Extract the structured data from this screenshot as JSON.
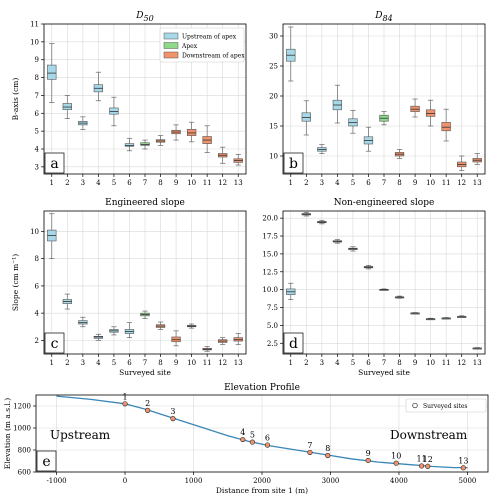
{
  "colors": {
    "upstream": "#a7d8e8",
    "apex": "#8fd98a",
    "downstream": "#f0926c",
    "profile_line": "#3a86b8",
    "grid": "#d9d9d9"
  },
  "chart_data": [
    {
      "id": "a",
      "type": "box",
      "title": "D",
      "title_sub": "50",
      "letter": "a",
      "ylabel": "B-axis (cm)",
      "xlabel": "",
      "ylim": [
        2.6,
        11
      ],
      "yticks": [
        3,
        4,
        5,
        6,
        7,
        8,
        9,
        10,
        11
      ],
      "grid": true,
      "legend": {
        "placement": "top-right",
        "entries": [
          {
            "label": "Upstream of apex",
            "group": "upstream"
          },
          {
            "label": "Apex",
            "group": "apex"
          },
          {
            "label": "Downstream of apex",
            "group": "downstream"
          }
        ]
      },
      "categories": [
        "1",
        "2",
        "3",
        "4",
        "5",
        "6",
        "7",
        "8",
        "9",
        "10",
        "11",
        "12",
        "13"
      ],
      "boxes": [
        {
          "site": "1",
          "group": "upstream",
          "min": 6.6,
          "q1": 7.9,
          "median": 8.25,
          "q3": 8.7,
          "max": 9.9
        },
        {
          "site": "2",
          "group": "upstream",
          "min": 5.7,
          "q1": 6.2,
          "median": 6.35,
          "q3": 6.55,
          "max": 7.0
        },
        {
          "site": "3",
          "group": "upstream",
          "min": 5.1,
          "q1": 5.35,
          "median": 5.45,
          "q3": 5.55,
          "max": 5.8
        },
        {
          "site": "4",
          "group": "upstream",
          "min": 6.7,
          "q1": 7.2,
          "median": 7.4,
          "q3": 7.6,
          "max": 8.3
        },
        {
          "site": "5",
          "group": "upstream",
          "min": 5.3,
          "q1": 5.95,
          "median": 6.1,
          "q3": 6.3,
          "max": 6.9
        },
        {
          "site": "6",
          "group": "upstream",
          "min": 3.9,
          "q1": 4.15,
          "median": 4.2,
          "q3": 4.3,
          "max": 4.6
        },
        {
          "site": "7",
          "group": "apex",
          "min": 4.0,
          "q1": 4.2,
          "median": 4.25,
          "q3": 4.35,
          "max": 4.5
        },
        {
          "site": "8",
          "group": "downstream",
          "min": 4.2,
          "q1": 4.38,
          "median": 4.45,
          "q3": 4.52,
          "max": 4.75
        },
        {
          "site": "9",
          "group": "downstream",
          "min": 4.5,
          "q1": 4.85,
          "median": 4.95,
          "q3": 5.05,
          "max": 5.35
        },
        {
          "site": "10",
          "group": "downstream",
          "min": 4.4,
          "q1": 4.75,
          "median": 4.9,
          "q3": 5.1,
          "max": 5.5
        },
        {
          "site": "11",
          "group": "downstream",
          "min": 3.8,
          "q1": 4.3,
          "median": 4.5,
          "q3": 4.7,
          "max": 5.3
        },
        {
          "site": "12",
          "group": "downstream",
          "min": 3.2,
          "q1": 3.55,
          "median": 3.65,
          "q3": 3.75,
          "max": 4.1
        },
        {
          "site": "13",
          "group": "downstream",
          "min": 3.1,
          "q1": 3.25,
          "median": 3.35,
          "q3": 3.45,
          "max": 3.7
        }
      ]
    },
    {
      "id": "b",
      "type": "box",
      "title": "D",
      "title_sub": "84",
      "letter": "b",
      "ylabel": "",
      "xlabel": "",
      "ylim": [
        7,
        32
      ],
      "yticks": [
        10,
        15,
        20,
        25,
        30
      ],
      "grid": true,
      "categories": [
        "1",
        "2",
        "3",
        "4",
        "5",
        "6",
        "7",
        "8",
        "9",
        "10",
        "11",
        "12",
        "13"
      ],
      "boxes": [
        {
          "site": "1",
          "group": "upstream",
          "min": 22.5,
          "q1": 25.8,
          "median": 26.8,
          "q3": 27.8,
          "max": 31.5
        },
        {
          "site": "2",
          "group": "upstream",
          "min": 13.5,
          "q1": 15.8,
          "median": 16.4,
          "q3": 17.2,
          "max": 19.2
        },
        {
          "site": "3",
          "group": "upstream",
          "min": 10.4,
          "q1": 10.8,
          "median": 11.1,
          "q3": 11.4,
          "max": 11.9
        },
        {
          "site": "4",
          "group": "upstream",
          "min": 15.5,
          "q1": 17.7,
          "median": 18.5,
          "q3": 19.3,
          "max": 21.8
        },
        {
          "site": "5",
          "group": "upstream",
          "min": 13.8,
          "q1": 15.0,
          "median": 15.6,
          "q3": 16.2,
          "max": 17.6
        },
        {
          "site": "6",
          "group": "upstream",
          "min": 10.8,
          "q1": 12.0,
          "median": 12.6,
          "q3": 13.2,
          "max": 14.8
        },
        {
          "site": "7",
          "group": "apex",
          "min": 15.2,
          "q1": 15.8,
          "median": 16.3,
          "q3": 16.8,
          "max": 17.4
        },
        {
          "site": "8",
          "group": "downstream",
          "min": 9.6,
          "q1": 10.0,
          "median": 10.3,
          "q3": 10.6,
          "max": 11.1
        },
        {
          "site": "9",
          "group": "downstream",
          "min": 16.5,
          "q1": 17.4,
          "median": 17.8,
          "q3": 18.3,
          "max": 19.5
        },
        {
          "site": "10",
          "group": "downstream",
          "min": 15.0,
          "q1": 16.6,
          "median": 17.1,
          "q3": 17.7,
          "max": 19.3
        },
        {
          "site": "11",
          "group": "downstream",
          "min": 12.5,
          "q1": 14.2,
          "median": 14.8,
          "q3": 15.6,
          "max": 17.8
        },
        {
          "site": "12",
          "group": "downstream",
          "min": 7.6,
          "q1": 8.2,
          "median": 8.6,
          "q3": 9.0,
          "max": 10.0
        },
        {
          "site": "13",
          "group": "downstream",
          "min": 8.6,
          "q1": 9.0,
          "median": 9.3,
          "q3": 9.6,
          "max": 10.4
        }
      ]
    },
    {
      "id": "c",
      "type": "box",
      "title": "Engineered slope",
      "title_sub": "",
      "letter": "c",
      "ylabel": "Slope (cm m⁻¹)",
      "xlabel": "Surveyed site",
      "ylim": [
        1,
        11.5
      ],
      "yticks": [
        2,
        4,
        6,
        8,
        10
      ],
      "grid": true,
      "categories": [
        "1",
        "2",
        "3",
        "4",
        "5",
        "6",
        "7",
        "8",
        "9",
        "10",
        "11",
        "12",
        "13"
      ],
      "boxes": [
        {
          "site": "1",
          "group": "upstream",
          "min": 8.0,
          "q1": 9.3,
          "median": 9.7,
          "q3": 10.1,
          "max": 11.3
        },
        {
          "site": "2",
          "group": "upstream",
          "min": 4.3,
          "q1": 4.7,
          "median": 4.85,
          "q3": 5.0,
          "max": 5.4
        },
        {
          "site": "3",
          "group": "upstream",
          "min": 3.0,
          "q1": 3.2,
          "median": 3.3,
          "q3": 3.45,
          "max": 3.7
        },
        {
          "site": "4",
          "group": "upstream",
          "min": 2.0,
          "q1": 2.15,
          "median": 2.25,
          "q3": 2.3,
          "max": 2.45
        },
        {
          "site": "5",
          "group": "upstream",
          "min": 2.4,
          "q1": 2.6,
          "median": 2.7,
          "q3": 2.8,
          "max": 3.0
        },
        {
          "site": "6",
          "group": "upstream",
          "min": 2.2,
          "q1": 2.5,
          "median": 2.65,
          "q3": 2.8,
          "max": 3.3
        },
        {
          "site": "7",
          "group": "apex",
          "min": 3.6,
          "q1": 3.8,
          "median": 3.9,
          "q3": 4.0,
          "max": 4.15
        },
        {
          "site": "8",
          "group": "downstream",
          "min": 2.8,
          "q1": 2.95,
          "median": 3.05,
          "q3": 3.15,
          "max": 3.35
        },
        {
          "site": "9",
          "group": "downstream",
          "min": 1.6,
          "q1": 1.9,
          "median": 2.05,
          "q3": 2.25,
          "max": 2.7
        },
        {
          "site": "10",
          "group": "downstream",
          "min": 2.9,
          "q1": 3.0,
          "median": 3.05,
          "q3": 3.1,
          "max": 3.2
        },
        {
          "site": "11",
          "group": "downstream",
          "min": 1.2,
          "q1": 1.3,
          "median": 1.35,
          "q3": 1.42,
          "max": 1.55
        },
        {
          "site": "12",
          "group": "downstream",
          "min": 1.7,
          "q1": 1.85,
          "median": 1.95,
          "q3": 2.05,
          "max": 2.2
        },
        {
          "site": "13",
          "group": "downstream",
          "min": 1.7,
          "q1": 1.95,
          "median": 2.05,
          "q3": 2.2,
          "max": 2.5
        }
      ]
    },
    {
      "id": "d",
      "type": "box",
      "title": "Non-engineered slope",
      "title_sub": "",
      "letter": "d",
      "ylabel": "",
      "xlabel": "Surveyed site",
      "ylim": [
        1,
        21
      ],
      "yticks": [
        2.5,
        5.0,
        7.5,
        10.0,
        12.5,
        15.0,
        17.5,
        20.0
      ],
      "ytick_labels": [
        "2.5",
        "5.0",
        "7.5",
        "10.0",
        "12.5",
        "15.0",
        "17.5",
        "20.0"
      ],
      "grid": true,
      "categories": [
        "1",
        "2",
        "3",
        "4",
        "5",
        "6",
        "7",
        "8",
        "9",
        "10",
        "11",
        "12",
        "13"
      ],
      "boxes": [
        {
          "site": "1",
          "group": "upstream",
          "min": 8.6,
          "q1": 9.3,
          "median": 9.7,
          "q3": 10.1,
          "max": 10.9
        },
        {
          "site": "2",
          "group": "upstream",
          "min": 20.3,
          "q1": 20.45,
          "median": 20.55,
          "q3": 20.65,
          "max": 20.8
        },
        {
          "site": "3",
          "group": "upstream",
          "min": 19.2,
          "q1": 19.35,
          "median": 19.45,
          "q3": 19.55,
          "max": 19.7
        },
        {
          "site": "4",
          "group": "upstream",
          "min": 16.5,
          "q1": 16.65,
          "median": 16.75,
          "q3": 16.85,
          "max": 17.0
        },
        {
          "site": "5",
          "group": "upstream",
          "min": 15.4,
          "q1": 15.6,
          "median": 15.7,
          "q3": 15.8,
          "max": 16.0
        },
        {
          "site": "6",
          "group": "upstream",
          "min": 12.9,
          "q1": 13.05,
          "median": 13.15,
          "q3": 13.25,
          "max": 13.4
        },
        {
          "site": "7",
          "group": "upstream",
          "min": 9.9,
          "q1": 9.95,
          "median": 10.0,
          "q3": 10.05,
          "max": 10.1
        },
        {
          "site": "8",
          "group": "upstream",
          "min": 8.8,
          "q1": 8.9,
          "median": 8.95,
          "q3": 9.0,
          "max": 9.1
        },
        {
          "site": "9",
          "group": "upstream",
          "min": 6.6,
          "q1": 6.65,
          "median": 6.7,
          "q3": 6.75,
          "max": 6.8
        },
        {
          "site": "10",
          "group": "upstream",
          "min": 5.8,
          "q1": 5.85,
          "median": 5.9,
          "q3": 5.95,
          "max": 6.0
        },
        {
          "site": "11",
          "group": "upstream",
          "min": 5.9,
          "q1": 5.95,
          "median": 6.0,
          "q3": 6.05,
          "max": 6.1
        },
        {
          "site": "12",
          "group": "upstream",
          "min": 6.1,
          "q1": 6.15,
          "median": 6.2,
          "q3": 6.25,
          "max": 6.35
        },
        {
          "site": "13",
          "group": "upstream",
          "min": 1.7,
          "q1": 1.75,
          "median": 1.8,
          "q3": 1.85,
          "max": 1.9
        }
      ]
    },
    {
      "id": "e",
      "type": "line",
      "title": "Elevation Profile",
      "letter": "e",
      "xlabel": "Distance from site 1 (m)",
      "ylabel": "Elevation (m a.s.l.)",
      "xlim": [
        -1300,
        5300
      ],
      "ylim": [
        600,
        1300
      ],
      "xticks": [
        -1000,
        0,
        1000,
        2000,
        3000,
        4000,
        5000
      ],
      "yticks": [
        600,
        800,
        1000,
        1200
      ],
      "grid": true,
      "legend": {
        "placement": "top-right",
        "entries": [
          {
            "label": "Surveyed sites"
          }
        ]
      },
      "region_labels": {
        "left": "Upstream",
        "right": "Downstream"
      },
      "profile": {
        "x": [
          -1000,
          -500,
          0,
          300,
          700,
          1100,
          1500,
          1800,
          2100,
          2500,
          2900,
          3300,
          3700,
          4100,
          4500,
          4800,
          5000
        ],
        "y": [
          1290,
          1260,
          1220,
          1170,
          1090,
          1010,
          930,
          880,
          840,
          800,
          760,
          720,
          690,
          670,
          650,
          640,
          640
        ]
      },
      "sites": [
        {
          "label": "1",
          "x": 0,
          "y": 1220
        },
        {
          "label": "2",
          "x": 330,
          "y": 1160
        },
        {
          "label": "3",
          "x": 700,
          "y": 1085
        },
        {
          "label": "4",
          "x": 1720,
          "y": 895
        },
        {
          "label": "5",
          "x": 1860,
          "y": 872
        },
        {
          "label": "6",
          "x": 2080,
          "y": 845
        },
        {
          "label": "7",
          "x": 2700,
          "y": 778
        },
        {
          "label": "8",
          "x": 2960,
          "y": 750
        },
        {
          "label": "9",
          "x": 3550,
          "y": 705
        },
        {
          "label": "10",
          "x": 3960,
          "y": 680
        },
        {
          "label": "11",
          "x": 4330,
          "y": 655
        },
        {
          "label": "12",
          "x": 4420,
          "y": 652
        },
        {
          "label": "13",
          "x": 4940,
          "y": 638
        }
      ]
    }
  ]
}
